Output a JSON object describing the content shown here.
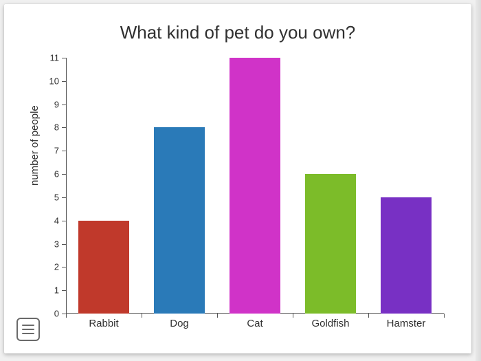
{
  "chart": {
    "type": "bar",
    "title": "What kind of pet do you own?",
    "title_fontsize": 26,
    "ylabel": "number of people",
    "label_fontsize": 15,
    "categories": [
      "Rabbit",
      "Dog",
      "Cat",
      "Goldfish",
      "Hamster"
    ],
    "values": [
      4,
      8,
      11,
      6,
      5
    ],
    "bar_colors": [
      "#c0392b",
      "#2a7ab8",
      "#d033c8",
      "#7cbc29",
      "#7830c4"
    ],
    "ylim": [
      0,
      11
    ],
    "ytick_step": 1,
    "background_color": "#ffffff",
    "axis_color": "#555555",
    "text_color": "#303030",
    "bar_width": 0.68,
    "tick_fontsize": 13,
    "category_fontsize": 15
  },
  "menu_icon_name": "menu-icon"
}
